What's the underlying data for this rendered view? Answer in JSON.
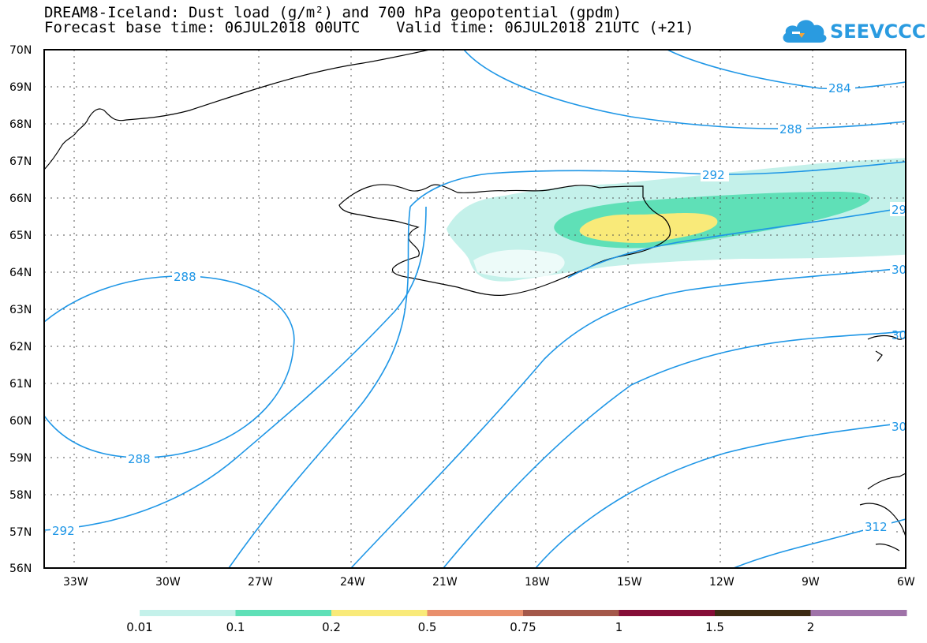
{
  "title": {
    "line1": "DREAM8-Iceland: Dust load (g/m²) and 700 hPa geopotential (gpdm)",
    "line2": "Forecast base time: 06JUL2018 00UTC    Valid time: 06JUL2018 21UTC (+21)"
  },
  "logo": {
    "text": "SEEVCCC"
  },
  "map": {
    "lat_labels": [
      "70N",
      "69N",
      "68N",
      "67N",
      "66N",
      "65N",
      "64N",
      "63N",
      "62N",
      "61N",
      "60N",
      "59N",
      "58N",
      "57N",
      "56N"
    ],
    "lon_labels": [
      "33W",
      "30W",
      "27W",
      "24W",
      "21W",
      "18W",
      "15W",
      "12W",
      "9W",
      "6W"
    ],
    "contour_labels": [
      "284",
      "288",
      "292",
      "29",
      "30",
      "288",
      "288",
      "292",
      "30",
      "30",
      "312"
    ]
  },
  "colorbar": {
    "colors": [
      "#c4f1ea",
      "#5fe0b7",
      "#f9ea79",
      "#e98f6c",
      "#a4584a",
      "#850e37",
      "#3d2b14",
      "#9f72a8"
    ],
    "labels": [
      "0.01",
      "0.1",
      "0.2",
      "0.5",
      "0.75",
      "1",
      "1.5",
      "2"
    ]
  },
  "colors": {
    "contour": "#1e96e6",
    "grid": "#555555"
  }
}
